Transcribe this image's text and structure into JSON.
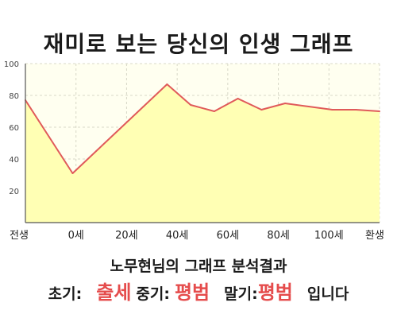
{
  "header": {
    "title": "재미로 보는 당신의 인생 그래프"
  },
  "chart_data": {
    "type": "area",
    "x_tick_labels": [
      "전생",
      "0세",
      "20세",
      "40세",
      "60세",
      "80세",
      "100세",
      "환생"
    ],
    "x_tick_index": [
      0,
      3,
      6,
      9,
      12,
      15,
      18,
      21
    ],
    "y_ticks": [
      20,
      40,
      60,
      80,
      100
    ],
    "ylim": [
      0,
      100
    ],
    "grid": true,
    "values": [
      77,
      54,
      31,
      45,
      59,
      73,
      87,
      74,
      70,
      78,
      71,
      75,
      73,
      71,
      71,
      70
    ],
    "colors": {
      "line": "#e05a5a",
      "fill": "#ffffb4",
      "plot_bg": "#fffff0",
      "grid": "#d8d8c8"
    }
  },
  "result": {
    "heading": "노무현님의 그래프 분석결과",
    "early_label": "초기:",
    "early_value": "출세",
    "mid_label": "중기:",
    "mid_value": "평범",
    "late_label": "말기:",
    "late_value": "평범",
    "ending": "입니다"
  }
}
